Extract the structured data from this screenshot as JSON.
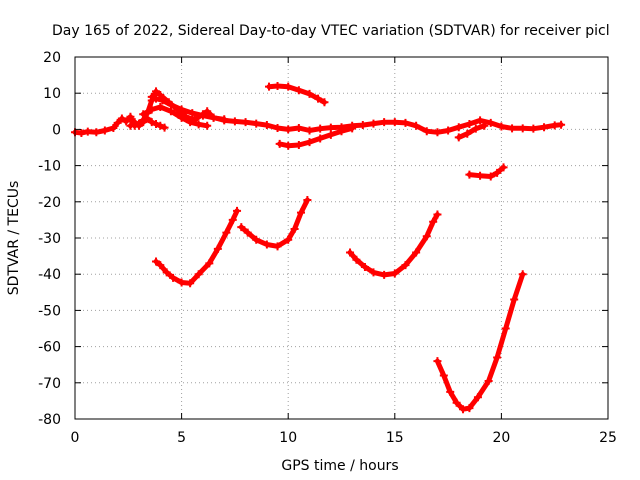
{
  "chart_data": {
    "type": "scatter",
    "title": "Day 165 of 2022, Sidereal Day-to-day VTEC variation (SDTVAR) for receiver picl",
    "xlabel": "GPS time / hours",
    "ylabel": "SDTVAR / TECUs",
    "xlim": [
      0,
      25
    ],
    "ylim": [
      -80,
      20
    ],
    "xticks": [
      0,
      5,
      10,
      15,
      20,
      25
    ],
    "yticks": [
      20,
      10,
      0,
      -10,
      -20,
      -30,
      -40,
      -50,
      -60,
      -70,
      -80
    ],
    "grid": true,
    "legend": "none",
    "color": "#ff0000",
    "series": [
      {
        "points": [
          [
            0.0,
            -0.8
          ],
          [
            0.3,
            -1.0
          ],
          [
            0.6,
            -0.6
          ],
          [
            1.0,
            -0.8
          ],
          [
            1.4,
            -0.3
          ],
          [
            1.8,
            0.4
          ],
          [
            2.0,
            1.8
          ],
          [
            2.2,
            3.0
          ],
          [
            2.4,
            2.2
          ],
          [
            2.6,
            3.5
          ],
          [
            2.8,
            1.0
          ],
          [
            3.0,
            1.6
          ],
          [
            3.2,
            2.6
          ],
          [
            3.4,
            4.5
          ],
          [
            3.6,
            8.0
          ],
          [
            3.8,
            10.5
          ],
          [
            4.0,
            9.5
          ],
          [
            4.4,
            7.5
          ],
          [
            4.8,
            5.5
          ],
          [
            5.2,
            3.5
          ],
          [
            5.6,
            2.6
          ],
          [
            6.0,
            4.2
          ],
          [
            6.2,
            5.0
          ],
          [
            6.5,
            3.3
          ],
          [
            7.0,
            2.5
          ],
          [
            7.5,
            2.2
          ],
          [
            8.0,
            2.0
          ],
          [
            8.5,
            1.6
          ],
          [
            9.0,
            1.2
          ],
          [
            9.5,
            0.4
          ],
          [
            10.0,
            0.0
          ],
          [
            10.5,
            0.4
          ],
          [
            11.0,
            -0.3
          ],
          [
            11.5,
            0.2
          ],
          [
            12.0,
            0.5
          ],
          [
            12.5,
            0.6
          ],
          [
            13.0,
            1.0
          ],
          [
            13.5,
            1.2
          ],
          [
            14.0,
            1.6
          ],
          [
            14.5,
            2.0
          ],
          [
            15.0,
            2.0
          ],
          [
            15.5,
            1.8
          ],
          [
            16.0,
            1.0
          ],
          [
            16.5,
            -0.5
          ],
          [
            17.0,
            -0.8
          ],
          [
            17.5,
            -0.3
          ],
          [
            18.0,
            0.6
          ],
          [
            18.5,
            1.5
          ],
          [
            19.0,
            2.5
          ],
          [
            19.5,
            1.8
          ],
          [
            20.0,
            0.8
          ],
          [
            20.5,
            0.3
          ],
          [
            21.0,
            0.3
          ],
          [
            21.5,
            0.2
          ],
          [
            22.0,
            0.6
          ],
          [
            22.5,
            1.1
          ],
          [
            22.8,
            1.3
          ]
        ]
      },
      {
        "points": [
          [
            2.6,
            1.0
          ],
          [
            2.8,
            2.0
          ],
          [
            3.0,
            1.0
          ],
          [
            3.2,
            2.0
          ],
          [
            3.4,
            3.0
          ],
          [
            3.6,
            2.0
          ],
          [
            3.8,
            1.5
          ],
          [
            4.0,
            1.0
          ],
          [
            4.2,
            0.5
          ]
        ]
      },
      {
        "points": [
          [
            3.6,
            9.0
          ],
          [
            3.8,
            8.5
          ],
          [
            4.1,
            8.0
          ],
          [
            4.5,
            6.8
          ],
          [
            5.0,
            5.5
          ],
          [
            5.5,
            4.5
          ],
          [
            6.0,
            3.8
          ],
          [
            6.5,
            3.2
          ],
          [
            7.0,
            2.8
          ]
        ]
      },
      {
        "points": [
          [
            3.2,
            4.2
          ],
          [
            3.6,
            5.5
          ],
          [
            4.0,
            6.2
          ],
          [
            4.5,
            5.0
          ],
          [
            5.0,
            3.2
          ],
          [
            5.4,
            2.0
          ],
          [
            5.8,
            1.4
          ],
          [
            6.2,
            1.0
          ]
        ]
      },
      {
        "points": [
          [
            9.1,
            11.8
          ],
          [
            9.5,
            12.0
          ],
          [
            10.0,
            11.8
          ],
          [
            10.5,
            10.8
          ],
          [
            11.0,
            9.8
          ],
          [
            11.4,
            8.5
          ],
          [
            11.7,
            7.5
          ]
        ]
      },
      {
        "points": [
          [
            9.6,
            -4.0
          ],
          [
            10.0,
            -4.5
          ],
          [
            10.5,
            -4.3
          ],
          [
            11.0,
            -3.5
          ],
          [
            11.5,
            -2.5
          ],
          [
            12.0,
            -1.5
          ],
          [
            12.5,
            -0.5
          ],
          [
            13.0,
            0.3
          ]
        ]
      },
      {
        "points": [
          [
            18.0,
            -2.2
          ],
          [
            18.4,
            -1.2
          ],
          [
            18.8,
            0.2
          ],
          [
            19.2,
            1.0
          ]
        ]
      },
      {
        "points": [
          [
            18.5,
            -12.5
          ],
          [
            19.0,
            -12.8
          ],
          [
            19.5,
            -13.0
          ],
          [
            19.8,
            -12.0
          ],
          [
            20.1,
            -10.5
          ]
        ]
      },
      {
        "points": [
          [
            3.8,
            -36.5
          ],
          [
            4.0,
            -37.5
          ],
          [
            4.3,
            -39.5
          ],
          [
            4.6,
            -41.0
          ],
          [
            5.0,
            -42.3
          ],
          [
            5.4,
            -42.5
          ],
          [
            5.8,
            -40.0
          ],
          [
            6.3,
            -37.0
          ],
          [
            6.7,
            -33.0
          ],
          [
            7.1,
            -28.5
          ],
          [
            7.4,
            -25.0
          ],
          [
            7.6,
            -22.5
          ]
        ]
      },
      {
        "points": [
          [
            7.8,
            -27.0
          ],
          [
            8.1,
            -28.5
          ],
          [
            8.5,
            -30.5
          ],
          [
            9.0,
            -31.8
          ],
          [
            9.5,
            -32.3
          ],
          [
            10.0,
            -30.5
          ],
          [
            10.3,
            -27.5
          ],
          [
            10.6,
            -23.0
          ],
          [
            10.9,
            -19.5
          ]
        ]
      },
      {
        "points": [
          [
            12.9,
            -34.0
          ],
          [
            13.2,
            -36.0
          ],
          [
            13.6,
            -38.0
          ],
          [
            14.0,
            -39.5
          ],
          [
            14.5,
            -40.2
          ],
          [
            15.0,
            -39.8
          ],
          [
            15.5,
            -37.5
          ],
          [
            16.0,
            -34.0
          ],
          [
            16.5,
            -29.5
          ],
          [
            16.8,
            -25.5
          ],
          [
            17.0,
            -23.5
          ]
        ]
      },
      {
        "points": [
          [
            17.0,
            -64.0
          ],
          [
            17.3,
            -68.0
          ],
          [
            17.6,
            -72.5
          ],
          [
            17.9,
            -75.5
          ],
          [
            18.2,
            -77.3
          ],
          [
            18.5,
            -77.0
          ],
          [
            18.9,
            -74.0
          ],
          [
            19.4,
            -69.5
          ],
          [
            19.8,
            -63.0
          ],
          [
            20.2,
            -55.0
          ],
          [
            20.6,
            -47.0
          ],
          [
            21.0,
            -40.0
          ]
        ]
      }
    ]
  }
}
